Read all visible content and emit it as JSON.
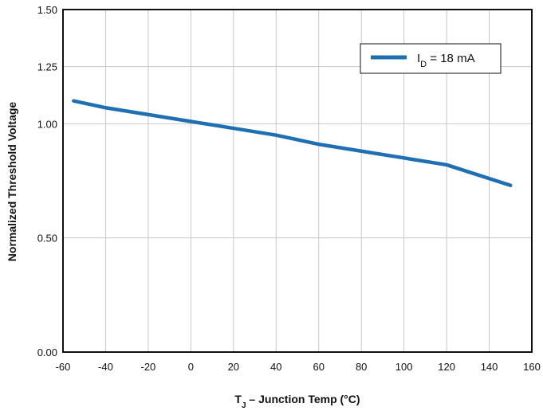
{
  "chart_data": {
    "type": "line",
    "title": "",
    "xlabel": "T_J – Junction Temp (°C)",
    "xlabel_main": "T",
    "xlabel_sub": "J",
    "xlabel_rest": " – Junction Temp (°C)",
    "ylabel": "Normalized Threshold Voltage",
    "xlim": [
      -60,
      160
    ],
    "ylim": [
      0.0,
      1.5
    ],
    "x_ticks": [
      -60,
      -40,
      -20,
      0,
      20,
      40,
      60,
      80,
      100,
      120,
      140,
      160
    ],
    "y_ticks": [
      0.0,
      0.5,
      1.0,
      1.25,
      1.5
    ],
    "x_tick_labels": [
      "-60",
      "-40",
      "-20",
      "0",
      "20",
      "40",
      "60",
      "80",
      "100",
      "120",
      "140",
      "160"
    ],
    "y_tick_labels": [
      "0.00",
      "0.50",
      "1.00",
      "1.25",
      "1.50"
    ],
    "grid": true,
    "legend_position": "top-right",
    "series": [
      {
        "name": "I_D = 18 mA",
        "name_main": "I",
        "name_sub": "D",
        "name_rest": " = 18 mA",
        "color": "#1f6fb4",
        "x": [
          -55,
          -40,
          -20,
          0,
          20,
          40,
          60,
          80,
          100,
          120,
          150
        ],
        "y": [
          1.1,
          1.07,
          1.04,
          1.01,
          0.98,
          0.95,
          0.91,
          0.88,
          0.85,
          0.82,
          0.73
        ]
      }
    ]
  }
}
